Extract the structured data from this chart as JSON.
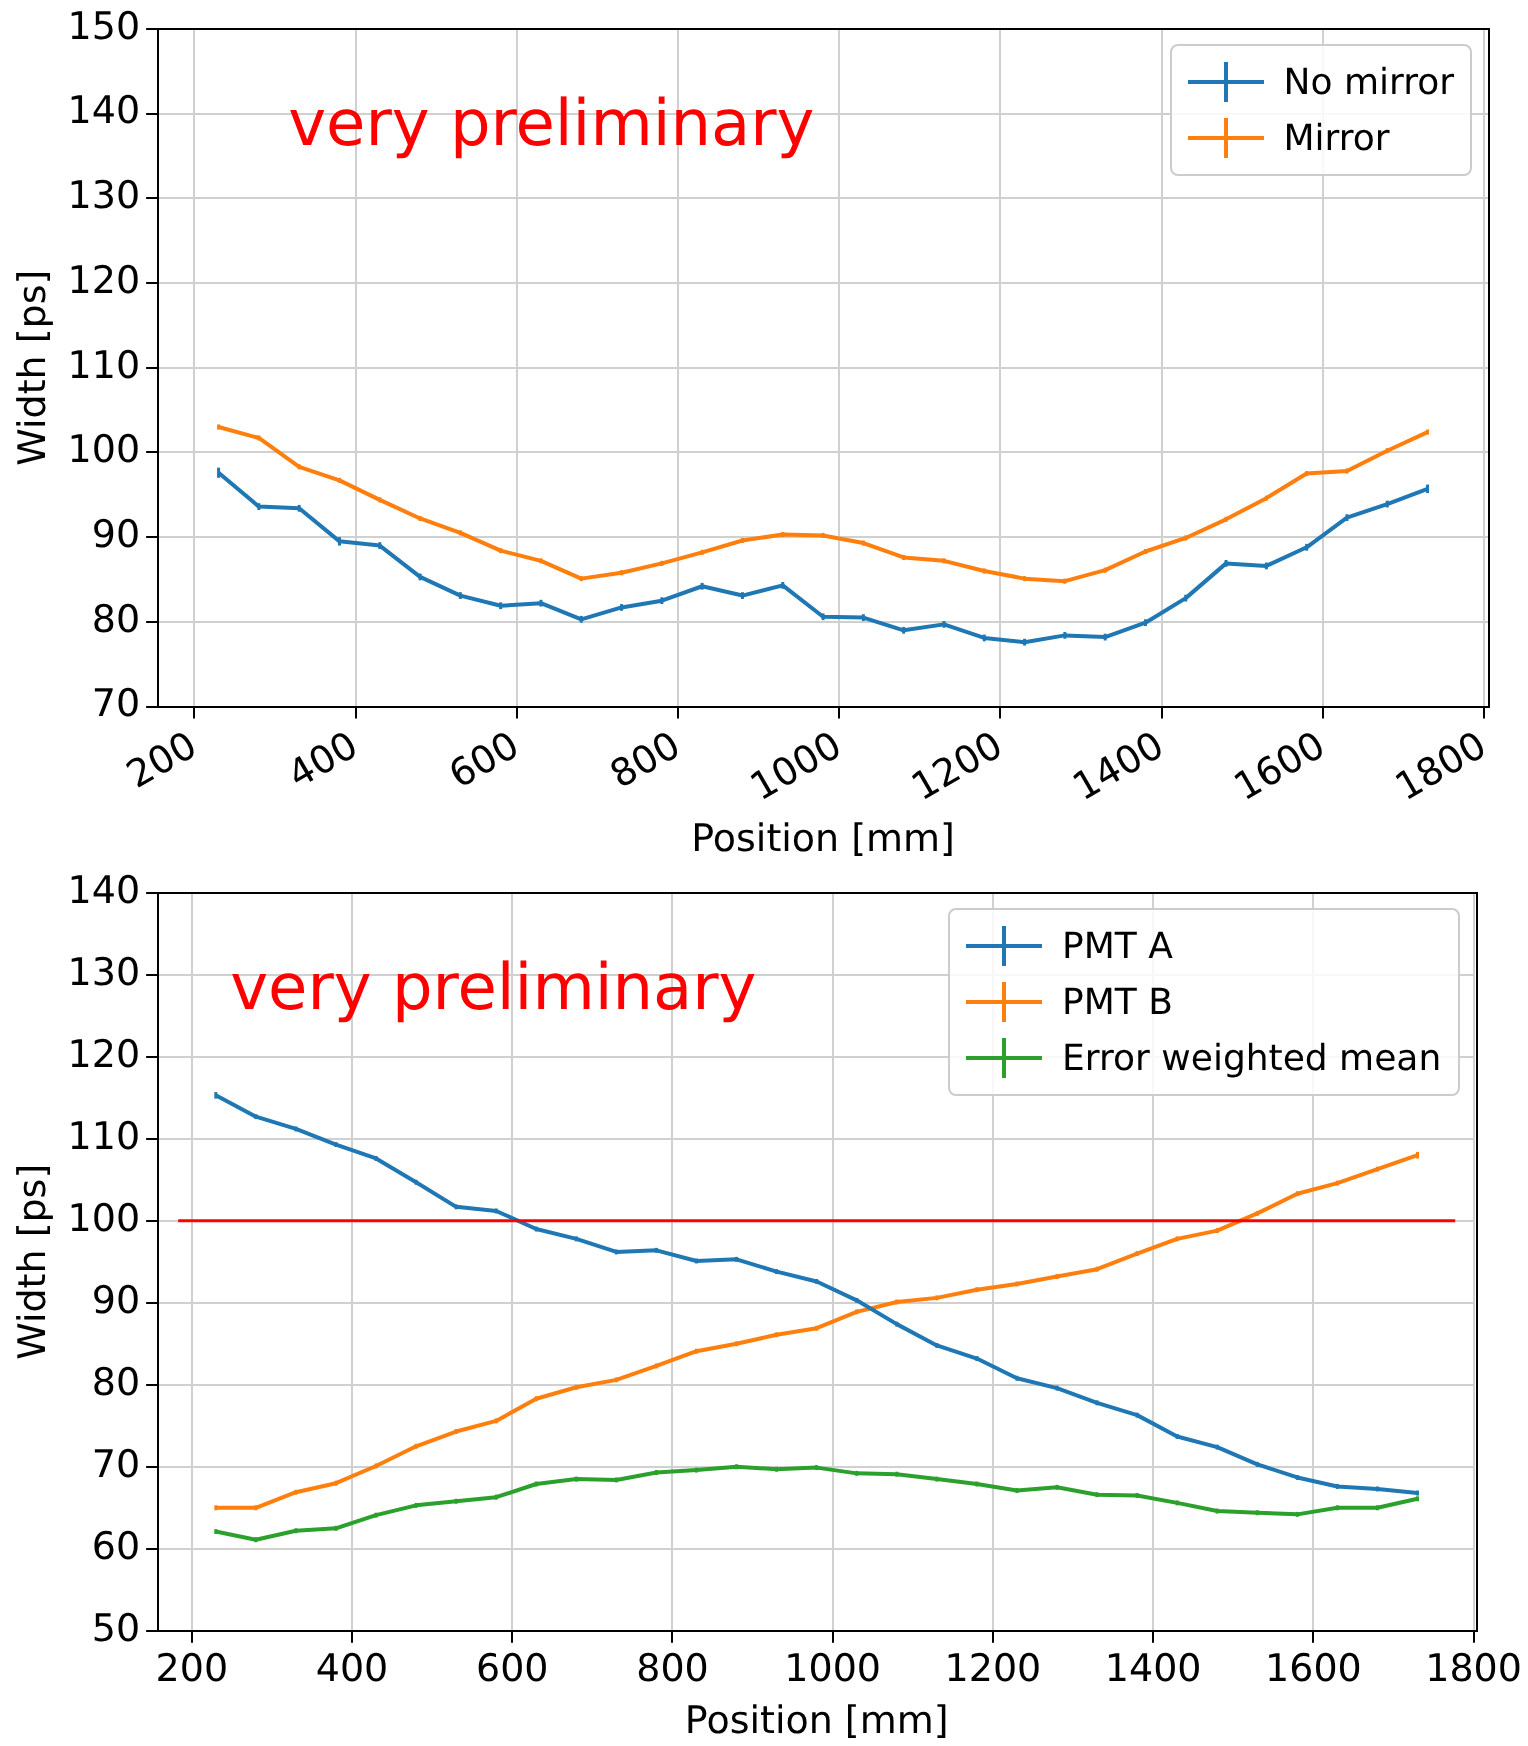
{
  "chart_data": [
    {
      "type": "line",
      "xlabel": "Position [mm]",
      "ylabel": "Width [ps]",
      "annotations": [
        "very preliminary"
      ],
      "xlim": [
        155,
        1805
      ],
      "ylim": [
        70,
        150
      ],
      "xticks": [
        200,
        400,
        600,
        800,
        1000,
        1200,
        1400,
        1600,
        1800
      ],
      "yticks": [
        70,
        80,
        90,
        100,
        110,
        120,
        130,
        140,
        150
      ],
      "grid": true,
      "legend": "top right",
      "x": [
        230,
        280,
        330,
        380,
        430,
        480,
        530,
        580,
        630,
        680,
        730,
        780,
        830,
        880,
        930,
        980,
        1030,
        1080,
        1130,
        1180,
        1230,
        1280,
        1330,
        1380,
        1430,
        1480,
        1530,
        1580,
        1630,
        1680,
        1730
      ],
      "series": [
        {
          "name": "No mirror",
          "color": "#1f77b4",
          "values": [
            97.6,
            93.6,
            93.4,
            89.5,
            89.0,
            85.3,
            83.1,
            81.9,
            82.2,
            80.3,
            81.7,
            82.5,
            84.2,
            83.1,
            84.3,
            80.6,
            80.5,
            79.0,
            79.7,
            78.1,
            77.6,
            78.4,
            78.2,
            79.9,
            82.8,
            86.9,
            86.6,
            88.8,
            92.3,
            93.9,
            95.7
          ],
          "errors": [
            0.6,
            0.4,
            0.4,
            0.5,
            0.4,
            0.4,
            0.4,
            0.4,
            0.4,
            0.4,
            0.4,
            0.4,
            0.4,
            0.4,
            0.4,
            0.4,
            0.4,
            0.4,
            0.4,
            0.4,
            0.4,
            0.4,
            0.4,
            0.4,
            0.4,
            0.4,
            0.4,
            0.4,
            0.4,
            0.4,
            0.5
          ]
        },
        {
          "name": "Mirror",
          "color": "#ff7f0e",
          "values": [
            103.0,
            101.7,
            98.3,
            96.7,
            94.4,
            92.2,
            90.5,
            88.4,
            87.2,
            85.1,
            85.8,
            86.9,
            88.2,
            89.6,
            90.3,
            90.2,
            89.3,
            87.6,
            87.2,
            86.0,
            85.1,
            84.8,
            86.1,
            88.3,
            89.9,
            92.1,
            94.6,
            97.5,
            97.8,
            100.2,
            102.4
          ],
          "errors": [
            0.3,
            0.3,
            0.3,
            0.3,
            0.3,
            0.3,
            0.3,
            0.3,
            0.3,
            0.3,
            0.3,
            0.3,
            0.3,
            0.3,
            0.3,
            0.3,
            0.3,
            0.3,
            0.3,
            0.3,
            0.3,
            0.3,
            0.3,
            0.3,
            0.3,
            0.3,
            0.3,
            0.3,
            0.3,
            0.3,
            0.3
          ]
        }
      ]
    },
    {
      "type": "line",
      "xlabel": "Position [mm]",
      "ylabel": "Width [ps]",
      "annotations": [
        "very preliminary"
      ],
      "xlim": [
        158,
        1802
      ],
      "ylim": [
        50,
        140
      ],
      "xticks": [
        200,
        400,
        600,
        800,
        1000,
        1200,
        1400,
        1600,
        1800
      ],
      "yticks": [
        50,
        60,
        70,
        80,
        90,
        100,
        110,
        120,
        130,
        140
      ],
      "grid": true,
      "legend": "top right",
      "ref_lines": [
        {
          "axis": "y",
          "value": 100,
          "color": "#ff0000"
        }
      ],
      "x": [
        230,
        280,
        330,
        380,
        430,
        480,
        530,
        580,
        630,
        680,
        730,
        780,
        830,
        880,
        930,
        980,
        1030,
        1080,
        1130,
        1180,
        1230,
        1280,
        1330,
        1380,
        1430,
        1480,
        1530,
        1580,
        1630,
        1680,
        1730
      ],
      "series": [
        {
          "name": "PMT A",
          "color": "#1f77b4",
          "values": [
            115.3,
            112.7,
            111.2,
            109.3,
            107.6,
            104.7,
            101.7,
            101.2,
            99.0,
            97.8,
            96.2,
            96.4,
            95.1,
            95.3,
            93.8,
            92.6,
            90.3,
            87.4,
            84.8,
            83.2,
            80.8,
            79.6,
            77.8,
            76.3,
            73.7,
            72.4,
            70.3,
            68.7,
            67.6,
            67.3,
            66.8
          ],
          "errors": [
            0.4,
            0.3,
            0.3,
            0.3,
            0.3,
            0.3,
            0.3,
            0.3,
            0.3,
            0.3,
            0.3,
            0.3,
            0.3,
            0.3,
            0.3,
            0.3,
            0.3,
            0.3,
            0.3,
            0.3,
            0.3,
            0.3,
            0.3,
            0.3,
            0.3,
            0.3,
            0.3,
            0.3,
            0.3,
            0.3,
            0.3
          ]
        },
        {
          "name": "PMT B",
          "color": "#ff7f0e",
          "values": [
            65.0,
            65.0,
            66.9,
            68.0,
            70.1,
            72.5,
            74.3,
            75.6,
            78.3,
            79.7,
            80.6,
            82.3,
            84.1,
            85.0,
            86.1,
            86.9,
            88.9,
            90.1,
            90.6,
            91.6,
            92.3,
            93.2,
            94.1,
            96.0,
            97.8,
            98.8,
            100.9,
            103.3,
            104.6,
            106.3,
            108.0
          ],
          "errors": [
            0.3,
            0.3,
            0.3,
            0.3,
            0.3,
            0.3,
            0.3,
            0.3,
            0.3,
            0.3,
            0.3,
            0.3,
            0.3,
            0.3,
            0.3,
            0.3,
            0.3,
            0.3,
            0.3,
            0.3,
            0.3,
            0.3,
            0.3,
            0.3,
            0.3,
            0.3,
            0.3,
            0.3,
            0.3,
            0.3,
            0.4
          ]
        },
        {
          "name": "Error weighted mean",
          "color": "#2ca02c",
          "values": [
            62.1,
            61.1,
            62.2,
            62.5,
            64.1,
            65.3,
            65.8,
            66.3,
            67.9,
            68.5,
            68.4,
            69.3,
            69.6,
            70.0,
            69.7,
            69.9,
            69.2,
            69.1,
            68.5,
            67.9,
            67.1,
            67.5,
            66.6,
            66.5,
            65.6,
            64.6,
            64.4,
            64.2,
            65.0,
            65.0,
            66.1
          ],
          "errors": [
            0.3,
            0.3,
            0.3,
            0.3,
            0.3,
            0.3,
            0.3,
            0.3,
            0.3,
            0.3,
            0.3,
            0.3,
            0.3,
            0.3,
            0.3,
            0.3,
            0.3,
            0.3,
            0.3,
            0.3,
            0.3,
            0.3,
            0.3,
            0.3,
            0.3,
            0.3,
            0.3,
            0.3,
            0.3,
            0.3,
            0.3
          ]
        }
      ]
    }
  ]
}
